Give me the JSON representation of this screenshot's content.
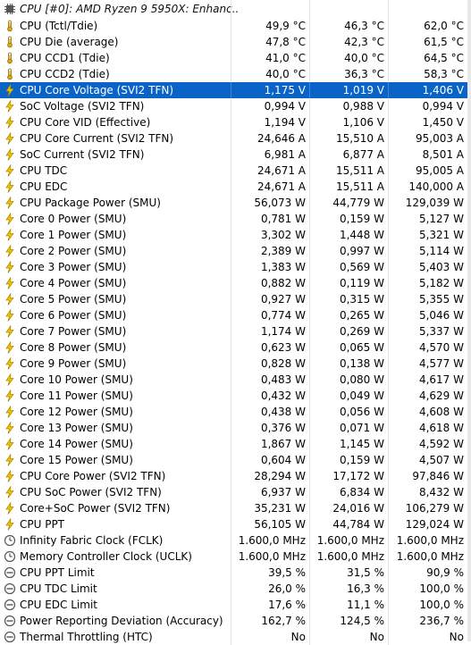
{
  "group_title": "CPU [#0]: AMD Ryzen 9 5950X: Enhanc...",
  "rows": [
    {
      "label": "CPU (Tctl/Tdie)",
      "current": "49,9 °C",
      "min": "46,3 °C",
      "max": "62,0 °C",
      "icon": "thermometer-icon"
    },
    {
      "label": "CPU Die (average)",
      "current": "47,8 °C",
      "min": "42,3 °C",
      "max": "61,5 °C",
      "icon": "thermometer-icon"
    },
    {
      "label": "CPU CCD1 (Tdie)",
      "current": "41,0 °C",
      "min": "40,0 °C",
      "max": "64,5 °C",
      "icon": "thermometer-icon"
    },
    {
      "label": "CPU CCD2 (Tdie)",
      "current": "40,0 °C",
      "min": "36,3 °C",
      "max": "58,3 °C",
      "icon": "thermometer-icon"
    },
    {
      "label": "CPU Core Voltage (SVI2 TFN)",
      "current": "1,175 V",
      "min": "1,019 V",
      "max": "1,406 V",
      "icon": "lightning-icon",
      "selected": true
    },
    {
      "label": "SoC Voltage (SVI2 TFN)",
      "current": "0,994 V",
      "min": "0,988 V",
      "max": "0,994 V",
      "icon": "lightning-icon"
    },
    {
      "label": "CPU Core VID (Effective)",
      "current": "1,194 V",
      "min": "1,106 V",
      "max": "1,450 V",
      "icon": "lightning-icon"
    },
    {
      "label": "CPU Core Current (SVI2 TFN)",
      "current": "24,646 A",
      "min": "15,510 A",
      "max": "95,003 A",
      "icon": "lightning-icon"
    },
    {
      "label": "SoC Current (SVI2 TFN)",
      "current": "6,981 A",
      "min": "6,877 A",
      "max": "8,501 A",
      "icon": "lightning-icon"
    },
    {
      "label": "CPU TDC",
      "current": "24,671 A",
      "min": "15,511 A",
      "max": "95,005 A",
      "icon": "lightning-icon"
    },
    {
      "label": "CPU EDC",
      "current": "24,671 A",
      "min": "15,511 A",
      "max": "140,000 A",
      "icon": "lightning-icon"
    },
    {
      "label": "CPU Package Power (SMU)",
      "current": "56,073 W",
      "min": "44,779 W",
      "max": "129,039 W",
      "icon": "lightning-icon"
    },
    {
      "label": "Core 0 Power (SMU)",
      "current": "0,781 W",
      "min": "0,159 W",
      "max": "5,127 W",
      "icon": "lightning-icon"
    },
    {
      "label": "Core 1 Power (SMU)",
      "current": "3,302 W",
      "min": "1,448 W",
      "max": "5,321 W",
      "icon": "lightning-icon"
    },
    {
      "label": "Core 2 Power (SMU)",
      "current": "2,389 W",
      "min": "0,997 W",
      "max": "5,114 W",
      "icon": "lightning-icon"
    },
    {
      "label": "Core 3 Power (SMU)",
      "current": "1,383 W",
      "min": "0,569 W",
      "max": "5,403 W",
      "icon": "lightning-icon"
    },
    {
      "label": "Core 4 Power (SMU)",
      "current": "0,882 W",
      "min": "0,119 W",
      "max": "5,182 W",
      "icon": "lightning-icon"
    },
    {
      "label": "Core 5 Power (SMU)",
      "current": "0,927 W",
      "min": "0,315 W",
      "max": "5,355 W",
      "icon": "lightning-icon"
    },
    {
      "label": "Core 6 Power (SMU)",
      "current": "0,774 W",
      "min": "0,265 W",
      "max": "5,046 W",
      "icon": "lightning-icon"
    },
    {
      "label": "Core 7 Power (SMU)",
      "current": "1,174 W",
      "min": "0,269 W",
      "max": "5,337 W",
      "icon": "lightning-icon"
    },
    {
      "label": "Core 8 Power (SMU)",
      "current": "0,623 W",
      "min": "0,065 W",
      "max": "4,570 W",
      "icon": "lightning-icon"
    },
    {
      "label": "Core 9 Power (SMU)",
      "current": "0,828 W",
      "min": "0,138 W",
      "max": "4,577 W",
      "icon": "lightning-icon"
    },
    {
      "label": "Core 10 Power (SMU)",
      "current": "0,483 W",
      "min": "0,080 W",
      "max": "4,617 W",
      "icon": "lightning-icon"
    },
    {
      "label": "Core 11 Power (SMU)",
      "current": "0,432 W",
      "min": "0,049 W",
      "max": "4,629 W",
      "icon": "lightning-icon"
    },
    {
      "label": "Core 12 Power (SMU)",
      "current": "0,438 W",
      "min": "0,056 W",
      "max": "4,608 W",
      "icon": "lightning-icon"
    },
    {
      "label": "Core 13 Power (SMU)",
      "current": "0,376 W",
      "min": "0,071 W",
      "max": "4,618 W",
      "icon": "lightning-icon"
    },
    {
      "label": "Core 14 Power (SMU)",
      "current": "1,867 W",
      "min": "1,145 W",
      "max": "4,592 W",
      "icon": "lightning-icon"
    },
    {
      "label": "Core 15 Power (SMU)",
      "current": "0,604 W",
      "min": "0,159 W",
      "max": "4,507 W",
      "icon": "lightning-icon"
    },
    {
      "label": "CPU Core Power (SVI2 TFN)",
      "current": "28,294 W",
      "min": "17,172 W",
      "max": "97,846 W",
      "icon": "lightning-icon"
    },
    {
      "label": "CPU SoC Power (SVI2 TFN)",
      "current": "6,937 W",
      "min": "6,834 W",
      "max": "8,432 W",
      "icon": "lightning-icon"
    },
    {
      "label": "Core+SoC Power (SVI2 TFN)",
      "current": "35,231 W",
      "min": "24,016 W",
      "max": "106,279 W",
      "icon": "lightning-icon"
    },
    {
      "label": "CPU PPT",
      "current": "56,105 W",
      "min": "44,784 W",
      "max": "129,024 W",
      "icon": "lightning-icon"
    },
    {
      "label": "Infinity Fabric Clock (FCLK)",
      "current": "1.600,0 MHz",
      "min": "1.600,0 MHz",
      "max": "1.600,0 MHz",
      "icon": "clock-icon"
    },
    {
      "label": "Memory Controller Clock (UCLK)",
      "current": "1.600,0 MHz",
      "min": "1.600,0 MHz",
      "max": "1.600,0 MHz",
      "icon": "clock-icon"
    },
    {
      "label": "CPU PPT Limit",
      "current": "39,5 %",
      "min": "31,5 %",
      "max": "90,9 %",
      "icon": "gauge-icon"
    },
    {
      "label": "CPU TDC Limit",
      "current": "26,0 %",
      "min": "16,3 %",
      "max": "100,0 %",
      "icon": "gauge-icon"
    },
    {
      "label": "CPU EDC Limit",
      "current": "17,6 %",
      "min": "11,1 %",
      "max": "100,0 %",
      "icon": "gauge-icon"
    },
    {
      "label": "Power Reporting Deviation (Accuracy)",
      "current": "162,7 %",
      "min": "124,5 %",
      "max": "236,7 %",
      "icon": "gauge-icon"
    },
    {
      "label": "Thermal Throttling (HTC)",
      "current": "No",
      "min": "No",
      "max": "No",
      "icon": "gauge-icon"
    }
  ],
  "colors": {
    "selection": "#0a64c8",
    "thermometer": "#e8a317",
    "lightning": "#f5c400",
    "gauge": "#606060"
  }
}
